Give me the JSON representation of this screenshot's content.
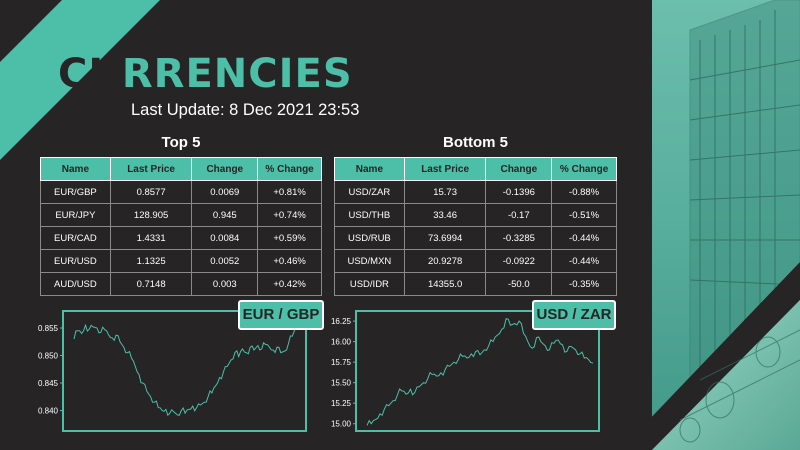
{
  "header": {
    "title": "CURRENCIES",
    "last_update": "Last Update: 8 Dec 2021 23:53"
  },
  "colors": {
    "accent": "#4dbfa8",
    "background": "#262424",
    "text": "#ffffff"
  },
  "top5": {
    "heading": "Top 5",
    "columns": [
      "Name",
      "Last Price",
      "Change",
      "% Change"
    ],
    "rows": [
      [
        "EUR/GBP",
        "0.8577",
        "0.0069",
        "+0.81%"
      ],
      [
        "EUR/JPY",
        "128.905",
        "0.945",
        "+0.74%"
      ],
      [
        "EUR/CAD",
        "1.4331",
        "0.0084",
        "+0.59%"
      ],
      [
        "EUR/USD",
        "1.1325",
        "0.0052",
        "+0.46%"
      ],
      [
        "AUD/USD",
        "0.7148",
        "0.003",
        "+0.42%"
      ]
    ]
  },
  "bottom5": {
    "heading": "Bottom 5",
    "columns": [
      "Name",
      "Last Price",
      "Change",
      "% Change"
    ],
    "rows": [
      [
        "USD/ZAR",
        "15.73",
        "-0.1396",
        "-0.88%"
      ],
      [
        "USD/THB",
        "33.46",
        "-0.17",
        "-0.51%"
      ],
      [
        "USD/RUB",
        "73.6994",
        "-0.3285",
        "-0.44%"
      ],
      [
        "USD/MXN",
        "20.9278",
        "-0.0922",
        "-0.44%"
      ],
      [
        "USD/IDR",
        "14355.0",
        "-50.0",
        "-0.35%"
      ]
    ]
  },
  "chart_data": [
    {
      "type": "line",
      "title": "EUR / GBP",
      "xlabel": "",
      "ylabel": "",
      "ylim": [
        0.837,
        0.857
      ],
      "yticks": [
        "0.855",
        "0.850",
        "0.845",
        "0.840"
      ],
      "ytick_values": [
        0.855,
        0.85,
        0.845,
        0.84
      ],
      "grid": false,
      "values": [
        0.853,
        0.8545,
        0.854,
        0.8555,
        0.8548,
        0.8552,
        0.855,
        0.8542,
        0.8547,
        0.8538,
        0.8532,
        0.8537,
        0.8525,
        0.8515,
        0.8505,
        0.8495,
        0.848,
        0.8465,
        0.845,
        0.8435,
        0.8425,
        0.8415,
        0.8405,
        0.84,
        0.8402,
        0.8395,
        0.8398,
        0.8392,
        0.84,
        0.8395,
        0.8402,
        0.8408,
        0.8405,
        0.841,
        0.8415,
        0.8425,
        0.8432,
        0.8445,
        0.846,
        0.847,
        0.848,
        0.8492,
        0.8505,
        0.8498,
        0.8512,
        0.8505,
        0.8515,
        0.851,
        0.8518,
        0.8512,
        0.852,
        0.8515,
        0.851,
        0.8515,
        0.8505,
        0.8508,
        0.8522,
        0.8535,
        0.855,
        0.8562
      ]
    },
    {
      "type": "line",
      "title": "USD / ZAR",
      "xlabel": "",
      "ylabel": "",
      "ylim": [
        14.96,
        16.3
      ],
      "yticks": [
        "16.25",
        "16.00",
        "15.75",
        "15.50",
        "15.25",
        "15.00"
      ],
      "ytick_values": [
        16.25,
        16.0,
        15.75,
        15.5,
        15.25,
        15.0
      ],
      "grid": false,
      "values": [
        14.98,
        15.0,
        15.05,
        15.12,
        15.18,
        15.22,
        15.28,
        15.35,
        15.4,
        15.36,
        15.42,
        15.38,
        15.45,
        15.5,
        15.55,
        15.6,
        15.58,
        15.62,
        15.66,
        15.7,
        15.75,
        15.78,
        15.82,
        15.8,
        15.85,
        15.88,
        15.84,
        15.9,
        15.95,
        16.0,
        16.08,
        16.15,
        16.28,
        16.2,
        16.22,
        16.25,
        16.1,
        16.0,
        15.92,
        16.05,
        16.0,
        15.95,
        15.9,
        15.98,
        16.02,
        15.96,
        15.88,
        15.94,
        15.9,
        15.85,
        15.8,
        15.78,
        15.74
      ]
    }
  ]
}
